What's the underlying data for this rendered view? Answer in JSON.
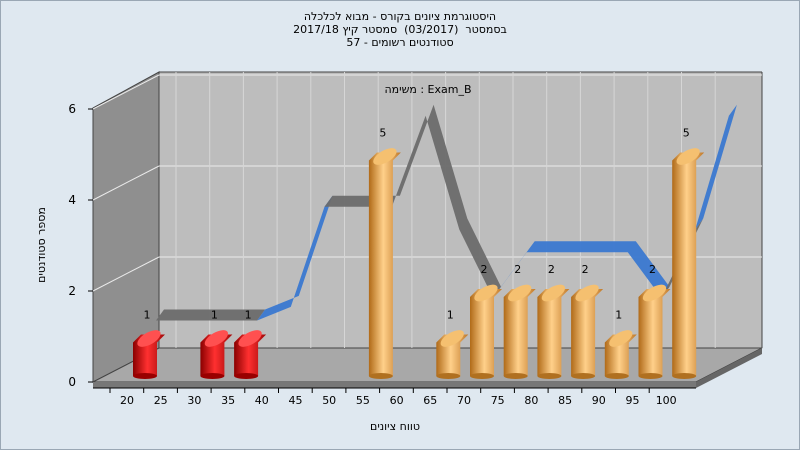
{
  "title_lines": [
    "היסטוגרמת ציונים בקורס - מבוא לכלכלה",
    "בסמסטר  (03/2017)  סמסטר קיץ 2017/18",
    "סטודנטים רשומים - 57"
  ],
  "chart_data": {
    "type": "bar",
    "title": "היסטוגרמת ציונים בקורס - מבוא לכלכלה",
    "annotation": "משימה : Exam_B",
    "xlabel": "טווח ציונים",
    "ylabel": "מספר סטודנטים",
    "ylim": [
      0,
      6
    ],
    "y_ticks": [
      "0",
      "2",
      "4",
      "6"
    ],
    "categories": [
      "20",
      "25",
      "30",
      "35",
      "40",
      "45",
      "50",
      "55",
      "60",
      "65",
      "70",
      "75",
      "80",
      "85",
      "90",
      "95",
      "100"
    ],
    "values": [
      1,
      0,
      1,
      1,
      0,
      0,
      0,
      5,
      0,
      1,
      2,
      2,
      2,
      2,
      1,
      2,
      5
    ],
    "data_labels": [
      "1",
      "",
      "1",
      "1",
      "",
      "",
      "",
      "5",
      "",
      "1",
      "2",
      "2",
      "2",
      "2",
      "1",
      "2",
      "5"
    ],
    "bar_color_rule": {
      "fail_below": 55,
      "fail_color": "#e02020",
      "pass_color": "#e8a040"
    },
    "background_series": [
      {
        "values": [
          1,
          1,
          1,
          1,
          1.3,
          3.5,
          3.5,
          3.5,
          5.5,
          3,
          1.5,
          2.5,
          2.5,
          2.5,
          2.5,
          1.5,
          3,
          5.5
        ]
      }
    ],
    "grid": true,
    "style": "3d"
  },
  "colors": {
    "fail_bar": "#e02020",
    "pass_bar": "#e8a040",
    "ribbon_gray": "#6b6b6b",
    "ribbon_blue": "#3a78d0",
    "back_wall": "#bdbdbd",
    "side_wall": "#8f8f8f",
    "floor": "#a8a8a8"
  }
}
